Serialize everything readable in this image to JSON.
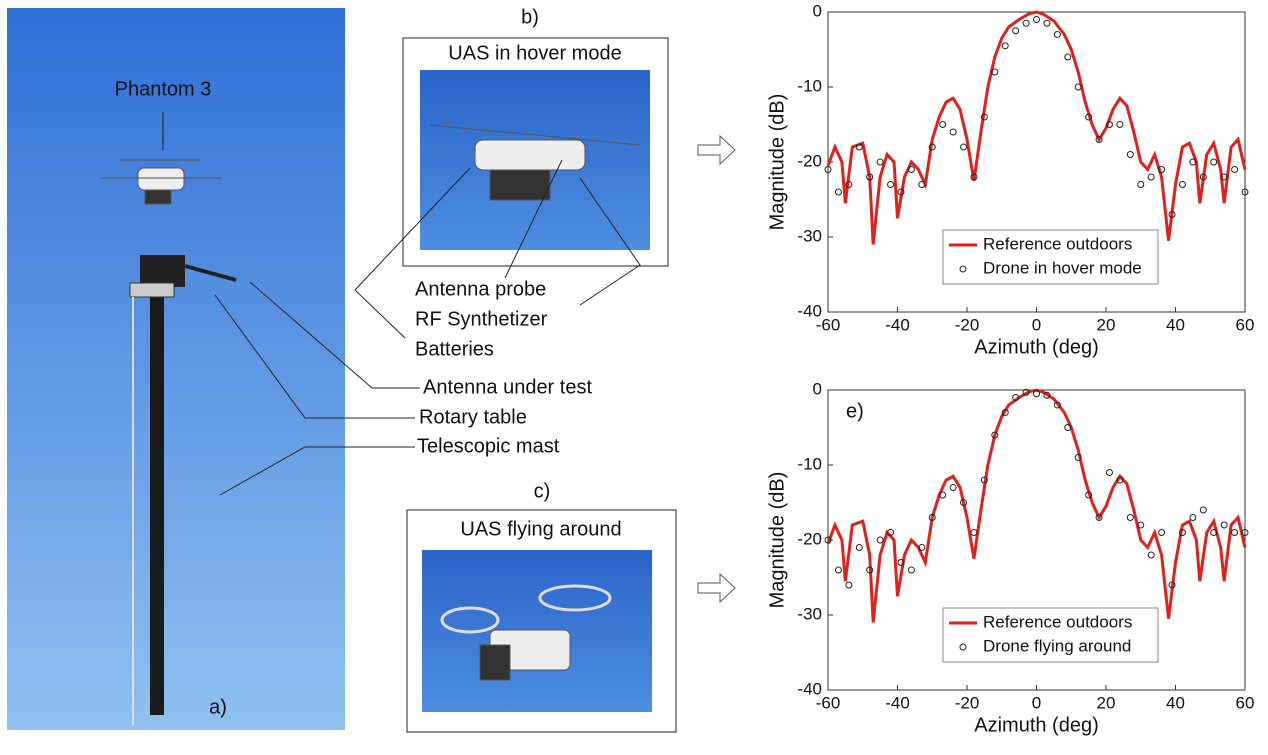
{
  "labels": {
    "phantom": "Phantom 3",
    "panel_a": "a)",
    "panel_b": "b)",
    "title_b": "UAS in hover mode",
    "panel_c": "c)",
    "title_c": "UAS flying around",
    "probe": "Antenna probe",
    "synth": "RF Synthetizer",
    "batteries": "Batteries",
    "aut": "Antenna under test",
    "rotary": "Rotary table",
    "mast": "Telescopic mast"
  },
  "chart_data": [
    {
      "type": "line",
      "ylabel": "Magnitude (dB)",
      "xlabel": "Azimuth (deg)",
      "xlim": [
        -60,
        60
      ],
      "ylim": [
        -40,
        0
      ],
      "xticks": [
        -60,
        -40,
        -20,
        0,
        20,
        40,
        60
      ],
      "yticks": [
        -40,
        -30,
        -20,
        -10,
        0
      ],
      "series": [
        {
          "name": "Reference outdoors",
          "color": "#e0201b",
          "x": [
            -60,
            -58,
            -56,
            -55,
            -53,
            -50,
            -48,
            -47,
            -45,
            -43,
            -41,
            -40,
            -38,
            -36,
            -34,
            -32,
            -30,
            -28,
            -26,
            -24,
            -22,
            -20,
            -18,
            -16,
            -14,
            -12,
            -10,
            -8,
            -5,
            -2,
            0,
            2,
            5,
            8,
            10,
            12,
            14,
            16,
            18,
            20,
            22,
            24,
            26,
            28,
            30,
            32,
            34,
            36,
            38,
            40,
            42,
            44,
            46,
            47,
            49,
            51,
            53,
            54,
            56,
            58,
            60
          ],
          "values": [
            -20.5,
            -18,
            -20,
            -25.5,
            -18,
            -17.5,
            -22,
            -31,
            -22,
            -19,
            -20,
            -27.5,
            -22,
            -20,
            -21,
            -23,
            -17,
            -14,
            -12,
            -11.5,
            -13,
            -17,
            -22.5,
            -16,
            -10,
            -6,
            -3.5,
            -2,
            -1,
            -0.2,
            0,
            -0.3,
            -1.2,
            -3,
            -5,
            -8,
            -12,
            -15,
            -17,
            -15.5,
            -13,
            -11.5,
            -12.5,
            -16,
            -20,
            -21,
            -19,
            -22,
            -30.5,
            -23,
            -18,
            -17.5,
            -20,
            -25.5,
            -19,
            -17.5,
            -21,
            -25.5,
            -18,
            -17,
            -21
          ]
        },
        {
          "name": "Drone in hover mode",
          "color": "#222222",
          "marker": "circle",
          "x": [
            -60,
            -57,
            -54,
            -51,
            -48,
            -45,
            -42,
            -39,
            -36,
            -33,
            -30,
            -27,
            -24,
            -21,
            -18,
            -15,
            -12,
            -9,
            -6,
            -3,
            0,
            3,
            6,
            9,
            12,
            15,
            18,
            21,
            24,
            27,
            30,
            33,
            36,
            39,
            42,
            45,
            48,
            51,
            54,
            57,
            60
          ],
          "values": [
            -21,
            -24,
            -23,
            -18,
            -22,
            -20,
            -23,
            -24,
            -21,
            -23,
            -18,
            -15,
            -16,
            -18,
            -22,
            -14,
            -8,
            -4.5,
            -2.5,
            -1.5,
            -1,
            -1.5,
            -3,
            -6,
            -10,
            -14,
            -17,
            -15,
            -15,
            -19,
            -23,
            -22,
            -21,
            -27,
            -23,
            -20,
            -22,
            -20,
            -22,
            -21,
            -24
          ]
        }
      ]
    },
    {
      "type": "line",
      "annotation": "e)",
      "ylabel": "Magnitude (dB)",
      "xlabel": "Azimuth (deg)",
      "xlim": [
        -60,
        60
      ],
      "ylim": [
        -40,
        0
      ],
      "xticks": [
        -60,
        -40,
        -20,
        0,
        20,
        40,
        60
      ],
      "yticks": [
        -40,
        -30,
        -20,
        -10,
        0
      ],
      "series": [
        {
          "name": "Reference outdoors",
          "color": "#e0201b",
          "x": [
            -60,
            -58,
            -56,
            -55,
            -53,
            -50,
            -48,
            -47,
            -45,
            -43,
            -41,
            -40,
            -38,
            -36,
            -34,
            -32,
            -30,
            -28,
            -26,
            -24,
            -22,
            -20,
            -18,
            -16,
            -14,
            -12,
            -10,
            -8,
            -5,
            -2,
            0,
            2,
            5,
            8,
            10,
            12,
            14,
            16,
            18,
            20,
            22,
            24,
            26,
            28,
            30,
            32,
            34,
            36,
            38,
            40,
            42,
            44,
            46,
            47,
            49,
            51,
            53,
            54,
            56,
            58,
            60
          ],
          "values": [
            -20.5,
            -18,
            -20,
            -25.5,
            -18,
            -17.5,
            -22,
            -31,
            -22,
            -19,
            -20,
            -27.5,
            -22,
            -20,
            -21,
            -23,
            -17,
            -14,
            -12,
            -11.5,
            -13,
            -17,
            -22.5,
            -16,
            -10,
            -6,
            -3.5,
            -2,
            -1,
            -0.2,
            0,
            -0.3,
            -1.2,
            -3,
            -5,
            -8,
            -12,
            -15,
            -17,
            -15.5,
            -13,
            -11.5,
            -12.5,
            -16,
            -20,
            -21,
            -19,
            -22,
            -30.5,
            -23,
            -18,
            -17.5,
            -20,
            -25.5,
            -19,
            -17.5,
            -21,
            -25.5,
            -18,
            -17,
            -21
          ]
        },
        {
          "name": "Drone flying around",
          "color": "#222222",
          "marker": "circle",
          "x": [
            -60,
            -57,
            -54,
            -51,
            -48,
            -45,
            -42,
            -39,
            -36,
            -33,
            -30,
            -27,
            -24,
            -21,
            -18,
            -15,
            -12,
            -9,
            -6,
            -3,
            0,
            3,
            6,
            9,
            12,
            15,
            18,
            21,
            24,
            27,
            30,
            33,
            36,
            39,
            42,
            45,
            48,
            51,
            54,
            57,
            60
          ],
          "values": [
            -20,
            -24,
            -26,
            -21,
            -24,
            -20,
            -19,
            -23,
            -24,
            -21,
            -17,
            -14,
            -13,
            -15,
            -19,
            -12,
            -6,
            -3,
            -1,
            -0.3,
            -0.5,
            -0.7,
            -2,
            -5,
            -9,
            -14,
            -17,
            -11,
            -12,
            -17,
            -18,
            -22,
            -19,
            -26,
            -19,
            -17,
            -16,
            -19,
            -18,
            -19,
            -19
          ]
        }
      ]
    }
  ]
}
